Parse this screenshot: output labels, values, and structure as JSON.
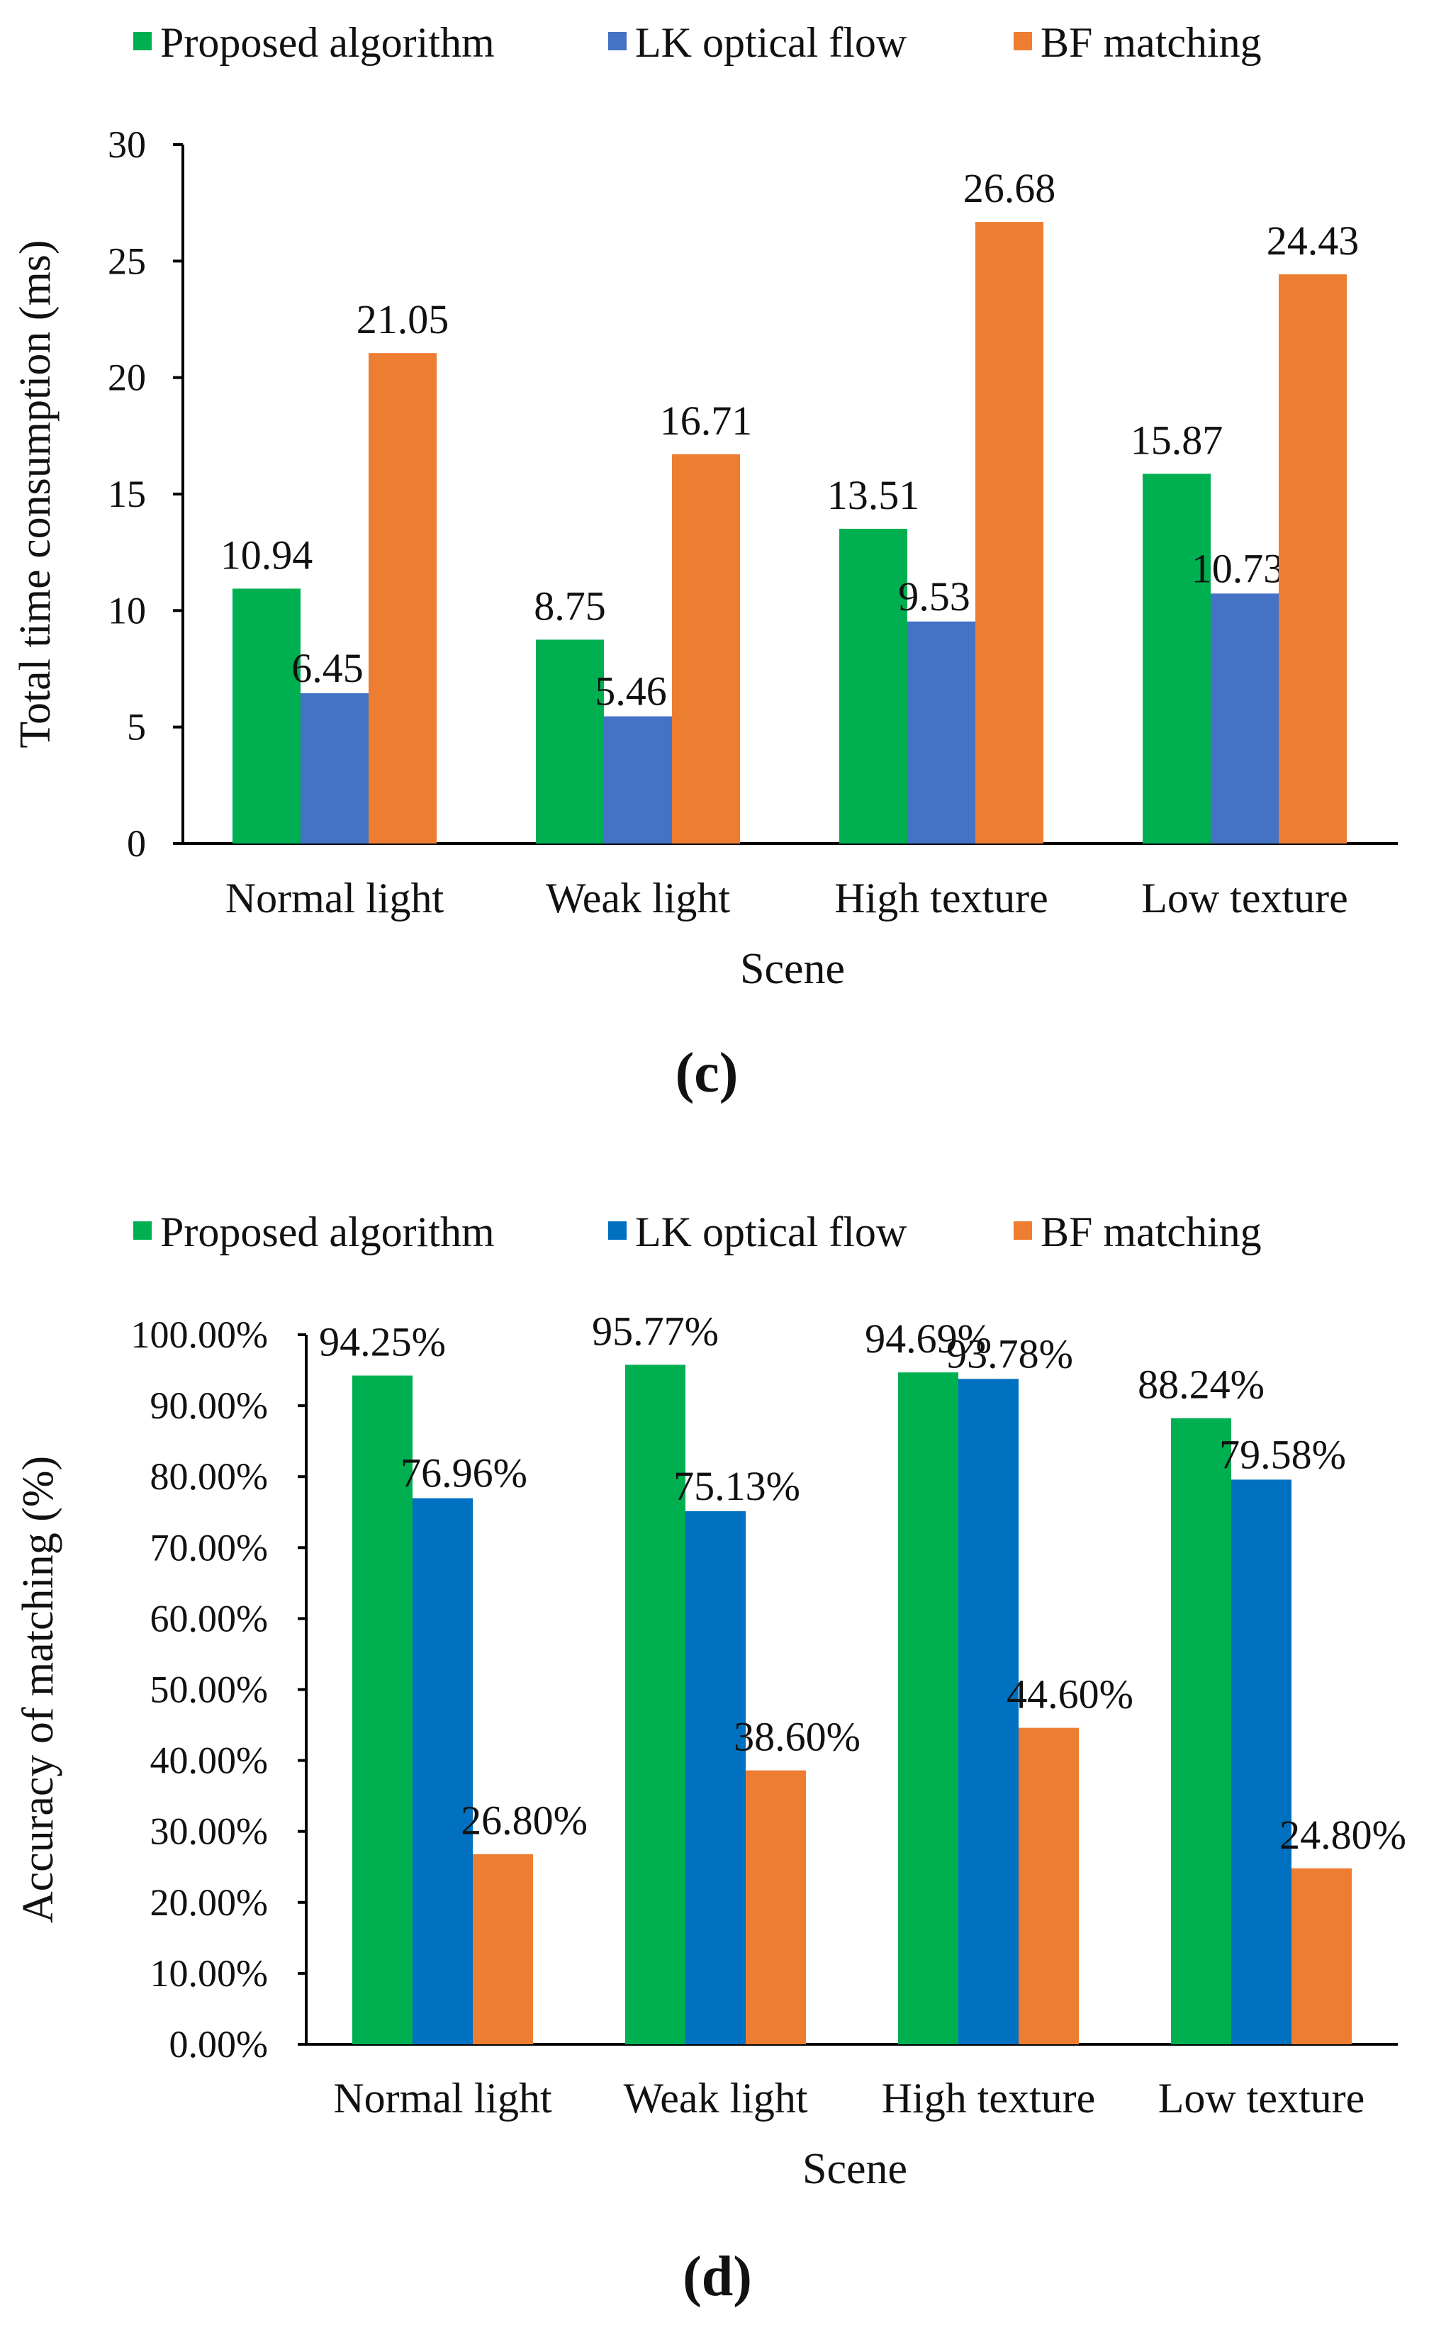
{
  "colors": {
    "axis": "#000000",
    "chart_c": {
      "proposed": "#00b050",
      "lk": "#4472c4",
      "bf": "#ed7d31"
    },
    "chart_d": {
      "proposed": "#00b050",
      "lk": "#0070c0",
      "bf": "#ed7d31"
    }
  },
  "chart_data": [
    {
      "panel_label": "(c)",
      "type": "bar",
      "title": "",
      "xlabel": "Scene",
      "ylabel": "Total time consumption (ms)",
      "categories": [
        "Normal light",
        "Weak light",
        "High texture",
        "Low texture"
      ],
      "ylim": [
        0,
        30
      ],
      "yticks": [
        0,
        5,
        10,
        15,
        20,
        25,
        30
      ],
      "ytick_labels": [
        "0",
        "5",
        "10",
        "15",
        "20",
        "25",
        "30"
      ],
      "grid": false,
      "legend_position": "top",
      "series": [
        {
          "key": "proposed",
          "name": "Proposed algorithm",
          "values": [
            10.94,
            8.75,
            13.51,
            15.87
          ],
          "labels": [
            "10.94",
            "8.75",
            "13.51",
            "15.87"
          ]
        },
        {
          "key": "lk",
          "name": "LK optical flow",
          "values": [
            6.45,
            5.46,
            9.53,
            10.73
          ],
          "labels": [
            "6.45",
            "5.46",
            "9.53",
            "10.73"
          ]
        },
        {
          "key": "bf",
          "name": "BF matching",
          "values": [
            21.05,
            16.71,
            26.68,
            24.43
          ],
          "labels": [
            "21.05",
            "16.71",
            "26.68",
            "24.43"
          ]
        }
      ]
    },
    {
      "panel_label": "(d)",
      "type": "bar",
      "title": "",
      "xlabel": "Scene",
      "ylabel": "Accuracy of matching (%)",
      "categories": [
        "Normal light",
        "Weak light",
        "High texture",
        "Low texture"
      ],
      "ylim": [
        0,
        100
      ],
      "yticks": [
        0,
        10,
        20,
        30,
        40,
        50,
        60,
        70,
        80,
        90,
        100
      ],
      "ytick_labels": [
        "0.00%",
        "10.00%",
        "20.00%",
        "30.00%",
        "40.00%",
        "50.00%",
        "60.00%",
        "70.00%",
        "80.00%",
        "90.00%",
        "100.00%"
      ],
      "grid": false,
      "legend_position": "top",
      "series": [
        {
          "key": "proposed",
          "name": "Proposed algorithm",
          "values": [
            94.25,
            95.77,
            94.69,
            88.24
          ],
          "labels": [
            "94.25%",
            "95.77%",
            "94.69%",
            "88.24%"
          ]
        },
        {
          "key": "lk",
          "name": "LK optical flow",
          "values": [
            76.96,
            75.13,
            93.78,
            79.58
          ],
          "labels": [
            "76.96%",
            "75.13%",
            "93.78%",
            "79.58%"
          ]
        },
        {
          "key": "bf",
          "name": "BF matching",
          "values": [
            26.8,
            38.6,
            44.6,
            24.8
          ],
          "labels": [
            "26.80%",
            "38.60%",
            "44.60%",
            "24.80%"
          ]
        }
      ]
    }
  ]
}
